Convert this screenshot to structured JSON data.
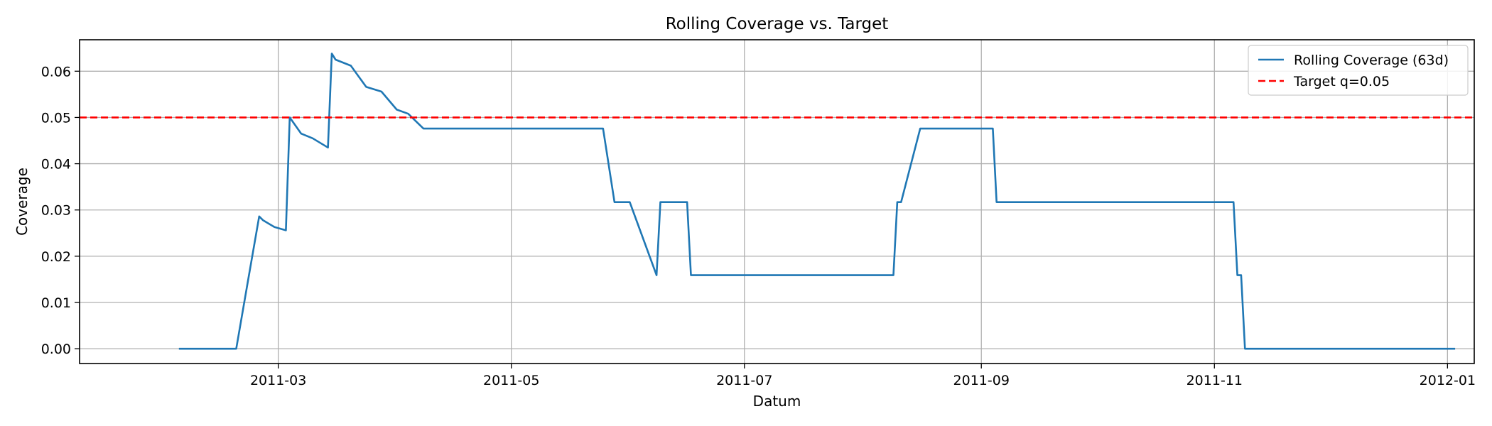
{
  "chart_data": {
    "type": "line",
    "title": "Rolling Coverage vs. Target",
    "xlabel": "Datum",
    "ylabel": "Coverage",
    "xlim": [
      "2011-01-08",
      "2012-01-08"
    ],
    "ylim": [
      -0.0032,
      0.0668
    ],
    "x_ticks": [
      {
        "date": "2011-03-01",
        "label": "2011-03"
      },
      {
        "date": "2011-05-01",
        "label": "2011-05"
      },
      {
        "date": "2011-07-01",
        "label": "2011-07"
      },
      {
        "date": "2011-09-01",
        "label": "2011-09"
      },
      {
        "date": "2011-11-01",
        "label": "2011-11"
      },
      {
        "date": "2012-01-01",
        "label": "2012-01"
      }
    ],
    "y_ticks": [
      {
        "value": 0.0,
        "label": "0.00"
      },
      {
        "value": 0.01,
        "label": "0.01"
      },
      {
        "value": 0.02,
        "label": "0.02"
      },
      {
        "value": 0.03,
        "label": "0.03"
      },
      {
        "value": 0.04,
        "label": "0.04"
      },
      {
        "value": 0.05,
        "label": "0.05"
      },
      {
        "value": 0.06,
        "label": "0.06"
      }
    ],
    "grid": true,
    "legend_position": "top-right",
    "series": [
      {
        "name": "Rolling Coverage (63d)",
        "color": "#1f77b4",
        "line_style": "solid",
        "points": [
          [
            "2011-02-03",
            0.0
          ],
          [
            "2011-02-18",
            0.0
          ],
          [
            "2011-02-21",
            0.0143
          ],
          [
            "2011-02-24",
            0.0286
          ],
          [
            "2011-02-25",
            0.0278
          ],
          [
            "2011-02-28",
            0.0263
          ],
          [
            "2011-03-03",
            0.0256
          ],
          [
            "2011-03-04",
            0.05
          ],
          [
            "2011-03-07",
            0.0465
          ],
          [
            "2011-03-10",
            0.0455
          ],
          [
            "2011-03-14",
            0.0435
          ],
          [
            "2011-03-15",
            0.0638
          ],
          [
            "2011-03-16",
            0.0625
          ],
          [
            "2011-03-20",
            0.0612
          ],
          [
            "2011-03-24",
            0.0566
          ],
          [
            "2011-03-28",
            0.0556
          ],
          [
            "2011-04-01",
            0.0517
          ],
          [
            "2011-04-04",
            0.0508
          ],
          [
            "2011-04-08",
            0.0476
          ],
          [
            "2011-05-25",
            0.0476
          ],
          [
            "2011-05-28",
            0.0317
          ],
          [
            "2011-06-01",
            0.0317
          ],
          [
            "2011-06-08",
            0.0159
          ],
          [
            "2011-06-09",
            0.0317
          ],
          [
            "2011-06-16",
            0.0317
          ],
          [
            "2011-06-17",
            0.0159
          ],
          [
            "2011-08-09",
            0.0159
          ],
          [
            "2011-08-10",
            0.0317
          ],
          [
            "2011-08-11",
            0.0317
          ],
          [
            "2011-08-16",
            0.0476
          ],
          [
            "2011-09-04",
            0.0476
          ],
          [
            "2011-09-05",
            0.0317
          ],
          [
            "2011-11-06",
            0.0317
          ],
          [
            "2011-11-07",
            0.0159
          ],
          [
            "2011-11-08",
            0.0159
          ],
          [
            "2011-11-09",
            0.0
          ],
          [
            "2012-01-03",
            0.0
          ]
        ]
      },
      {
        "name": "Target q=0.05",
        "color": "#ff0000",
        "line_style": "dashed",
        "value": 0.05
      }
    ]
  }
}
